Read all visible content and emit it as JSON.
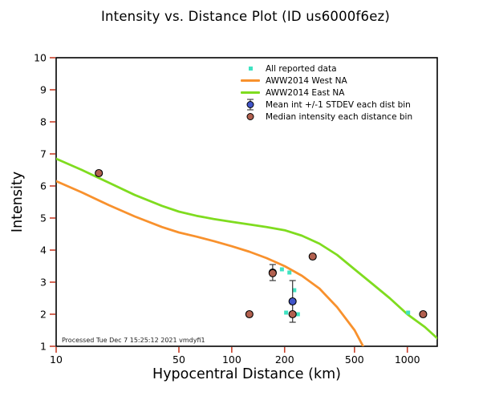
{
  "footnote": "Processed Tue Dec 7 15:25:12 2021 vmdyfi1",
  "chart_data": {
    "type": "scatter",
    "title": "Intensity vs. Distance Plot (ID us6000f6ez)",
    "xlabel": "Hypocentral Distance (km)",
    "ylabel": "Intensity",
    "x_scale": "log",
    "xlim": [
      10,
      1480
    ],
    "ylim": [
      1,
      10
    ],
    "x_ticks": [
      10,
      50,
      100,
      200,
      500,
      1000
    ],
    "y_ticks": [
      10,
      9,
      8,
      7,
      6,
      5,
      4,
      3,
      2,
      1
    ],
    "grid": false,
    "legend_position": "upper-center-inside",
    "frame_color": "#000000",
    "tick_color": "#c8402a",
    "series": [
      {
        "name": "All reported data",
        "type": "scatter",
        "marker": "square",
        "color": "#3fe3c2",
        "points": [
          [
            171,
            3.35
          ],
          [
            193,
            3.4
          ],
          [
            213,
            3.3
          ],
          [
            227,
            2.75
          ],
          [
            204,
            2.05
          ],
          [
            218,
            2.0
          ],
          [
            238,
            2.0
          ],
          [
            1010,
            2.05
          ]
        ]
      },
      {
        "name": "AWW2014 West NA",
        "type": "line",
        "color": "#f8912d",
        "points": [
          [
            10,
            6.15
          ],
          [
            14,
            5.8
          ],
          [
            20,
            5.4
          ],
          [
            28,
            5.05
          ],
          [
            40,
            4.72
          ],
          [
            50,
            4.55
          ],
          [
            63,
            4.42
          ],
          [
            79,
            4.28
          ],
          [
            100,
            4.12
          ],
          [
            126,
            3.95
          ],
          [
            158,
            3.75
          ],
          [
            200,
            3.5
          ],
          [
            251,
            3.2
          ],
          [
            316,
            2.8
          ],
          [
            398,
            2.22
          ],
          [
            501,
            1.5
          ],
          [
            560,
            1.0
          ]
        ]
      },
      {
        "name": "AWW2014 East NA",
        "type": "line",
        "color": "#7fdc1f",
        "points": [
          [
            10,
            6.85
          ],
          [
            14,
            6.5
          ],
          [
            20,
            6.1
          ],
          [
            28,
            5.72
          ],
          [
            40,
            5.38
          ],
          [
            50,
            5.2
          ],
          [
            63,
            5.07
          ],
          [
            79,
            4.97
          ],
          [
            100,
            4.88
          ],
          [
            126,
            4.8
          ],
          [
            158,
            4.72
          ],
          [
            200,
            4.62
          ],
          [
            251,
            4.45
          ],
          [
            316,
            4.2
          ],
          [
            398,
            3.85
          ],
          [
            501,
            3.4
          ],
          [
            631,
            2.95
          ],
          [
            794,
            2.5
          ],
          [
            1000,
            2.0
          ],
          [
            1259,
            1.6
          ],
          [
            1480,
            1.25
          ]
        ]
      },
      {
        "name": "Mean int +/-1 STDEV each dist bin",
        "type": "scatter",
        "marker": "circle-errorbar",
        "color": "#4054c8",
        "edge_color": "#000000",
        "error_color": "#444444",
        "points": [
          [
            171,
            3.3,
            0.25
          ],
          [
            222,
            2.4,
            0.65
          ]
        ]
      },
      {
        "name": "Median intensity each distance bin",
        "type": "scatter",
        "marker": "circle",
        "color": "#b2604f",
        "edge_color": "#000000",
        "points": [
          [
            17.5,
            6.4
          ],
          [
            126,
            2.0
          ],
          [
            171,
            3.28
          ],
          [
            222,
            2.0
          ],
          [
            289,
            3.8
          ],
          [
            1230,
            2.0
          ]
        ]
      }
    ]
  }
}
